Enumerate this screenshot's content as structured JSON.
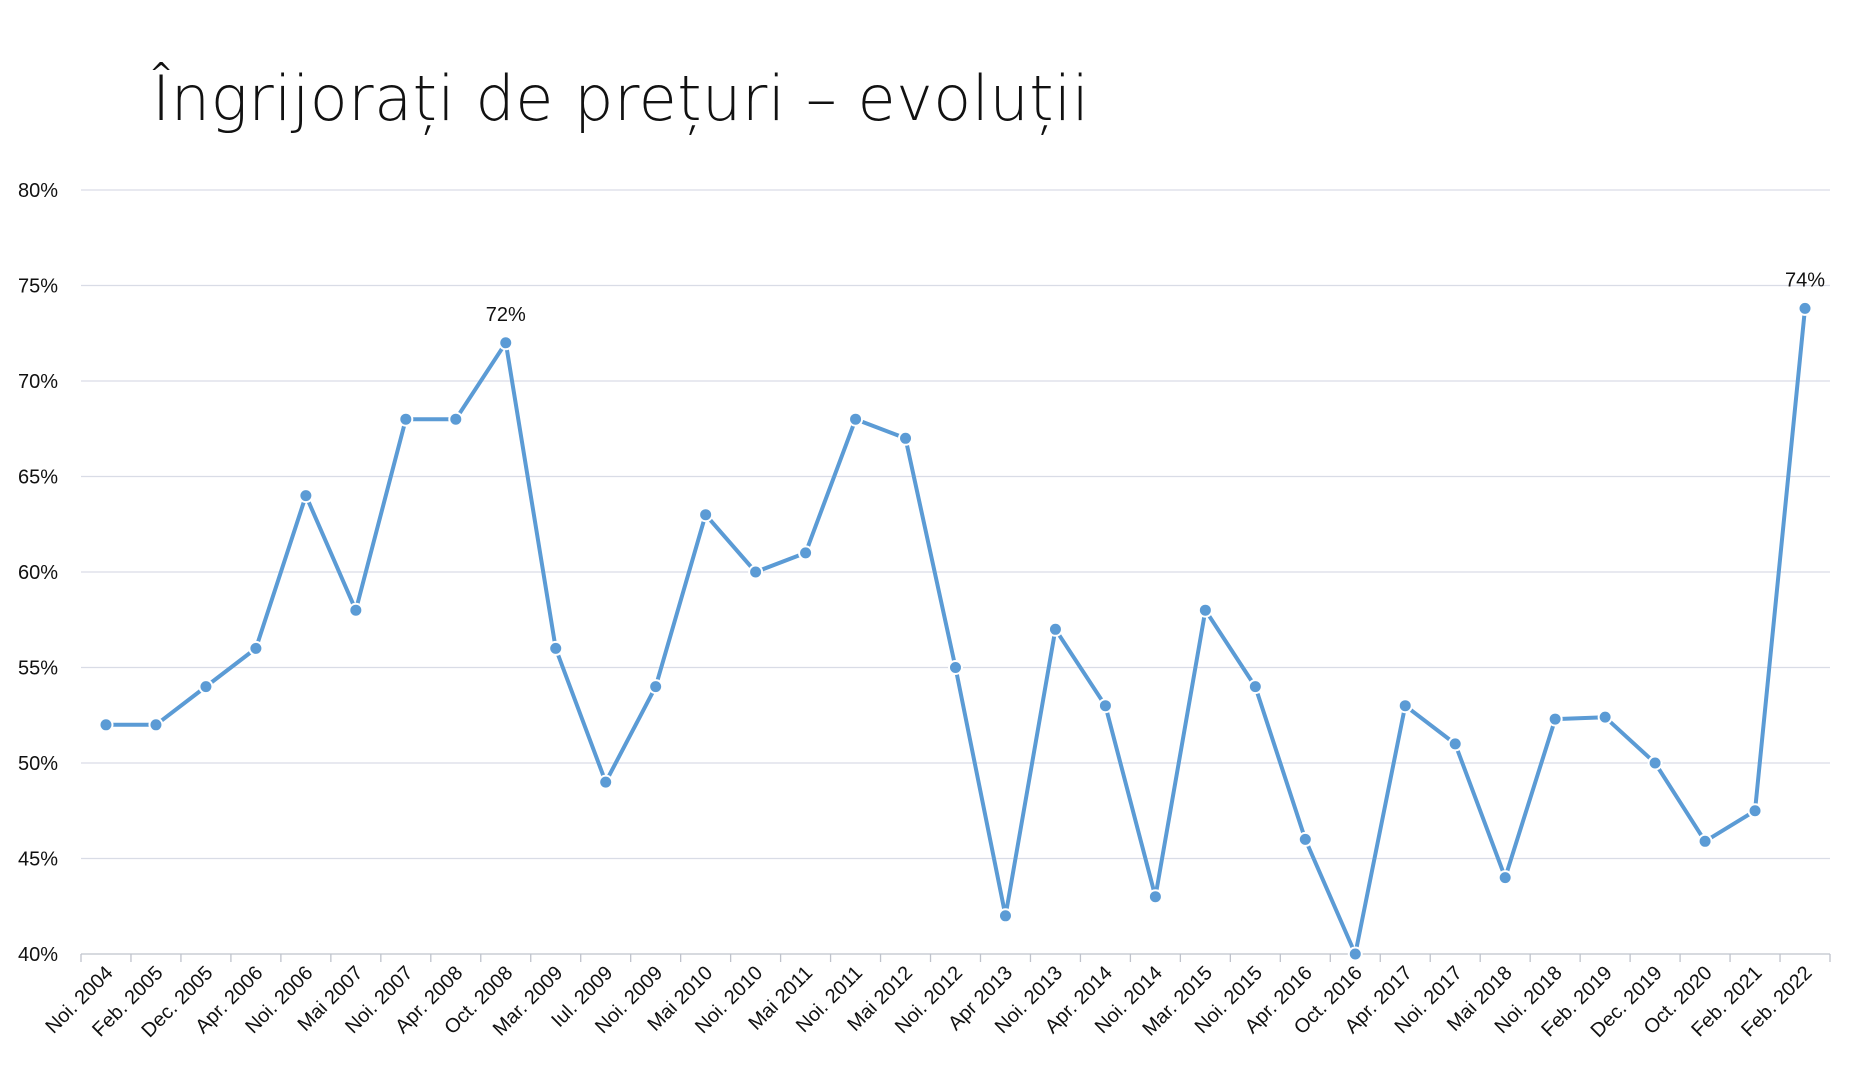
{
  "chart_data": {
    "type": "line",
    "title": "Îngrijorați de prețuri – evoluții",
    "xlabel": "",
    "ylabel": "",
    "ylim": [
      40,
      80
    ],
    "y_ticks": [
      "40%",
      "45%",
      "50%",
      "55%",
      "60%",
      "65%",
      "70%",
      "75%",
      "80%"
    ],
    "grid": true,
    "colors": {
      "line": "#5B9BD5",
      "grid": "#D9DCE6",
      "axis": "#BFC3CC"
    },
    "categories": [
      "Noi. 2004",
      "Feb. 2005",
      "Dec. 2005",
      "Apr. 2006",
      "Noi. 2006",
      "Mai 2007",
      "Noi. 2007",
      "Apr. 2008",
      "Oct. 2008",
      "Mar. 2009",
      "Iul. 2009",
      "Noi. 2009",
      "Mai 2010",
      "Noi. 2010",
      "Mai 2011",
      "Noi. 2011",
      "Mai 2012",
      "Noi. 2012",
      "Apr 2013",
      "Noi. 2013",
      "Apr. 2014",
      "Noi. 2014",
      "Mar. 2015",
      "Noi. 2015",
      "Apr. 2016",
      "Oct. 2016",
      "Apr. 2017",
      "Noi. 2017",
      "Mai 2018",
      "Noi. 2018",
      "Feb. 2019",
      "Dec. 2019",
      "Oct. 2020",
      "Feb. 2021",
      "Feb. 2022"
    ],
    "series": [
      {
        "values": [
          52,
          52,
          54,
          56,
          64,
          58,
          68,
          68,
          72,
          56,
          49,
          54,
          63,
          60,
          61,
          68,
          67,
          55,
          42,
          57,
          53,
          43,
          58,
          54,
          46,
          40,
          53,
          51,
          44,
          52.3,
          52.4,
          50,
          45.9,
          47.5,
          73.8
        ]
      }
    ],
    "data_labels": [
      {
        "index": 8,
        "text": "72%"
      },
      {
        "index": 34,
        "text": "74%"
      }
    ]
  }
}
